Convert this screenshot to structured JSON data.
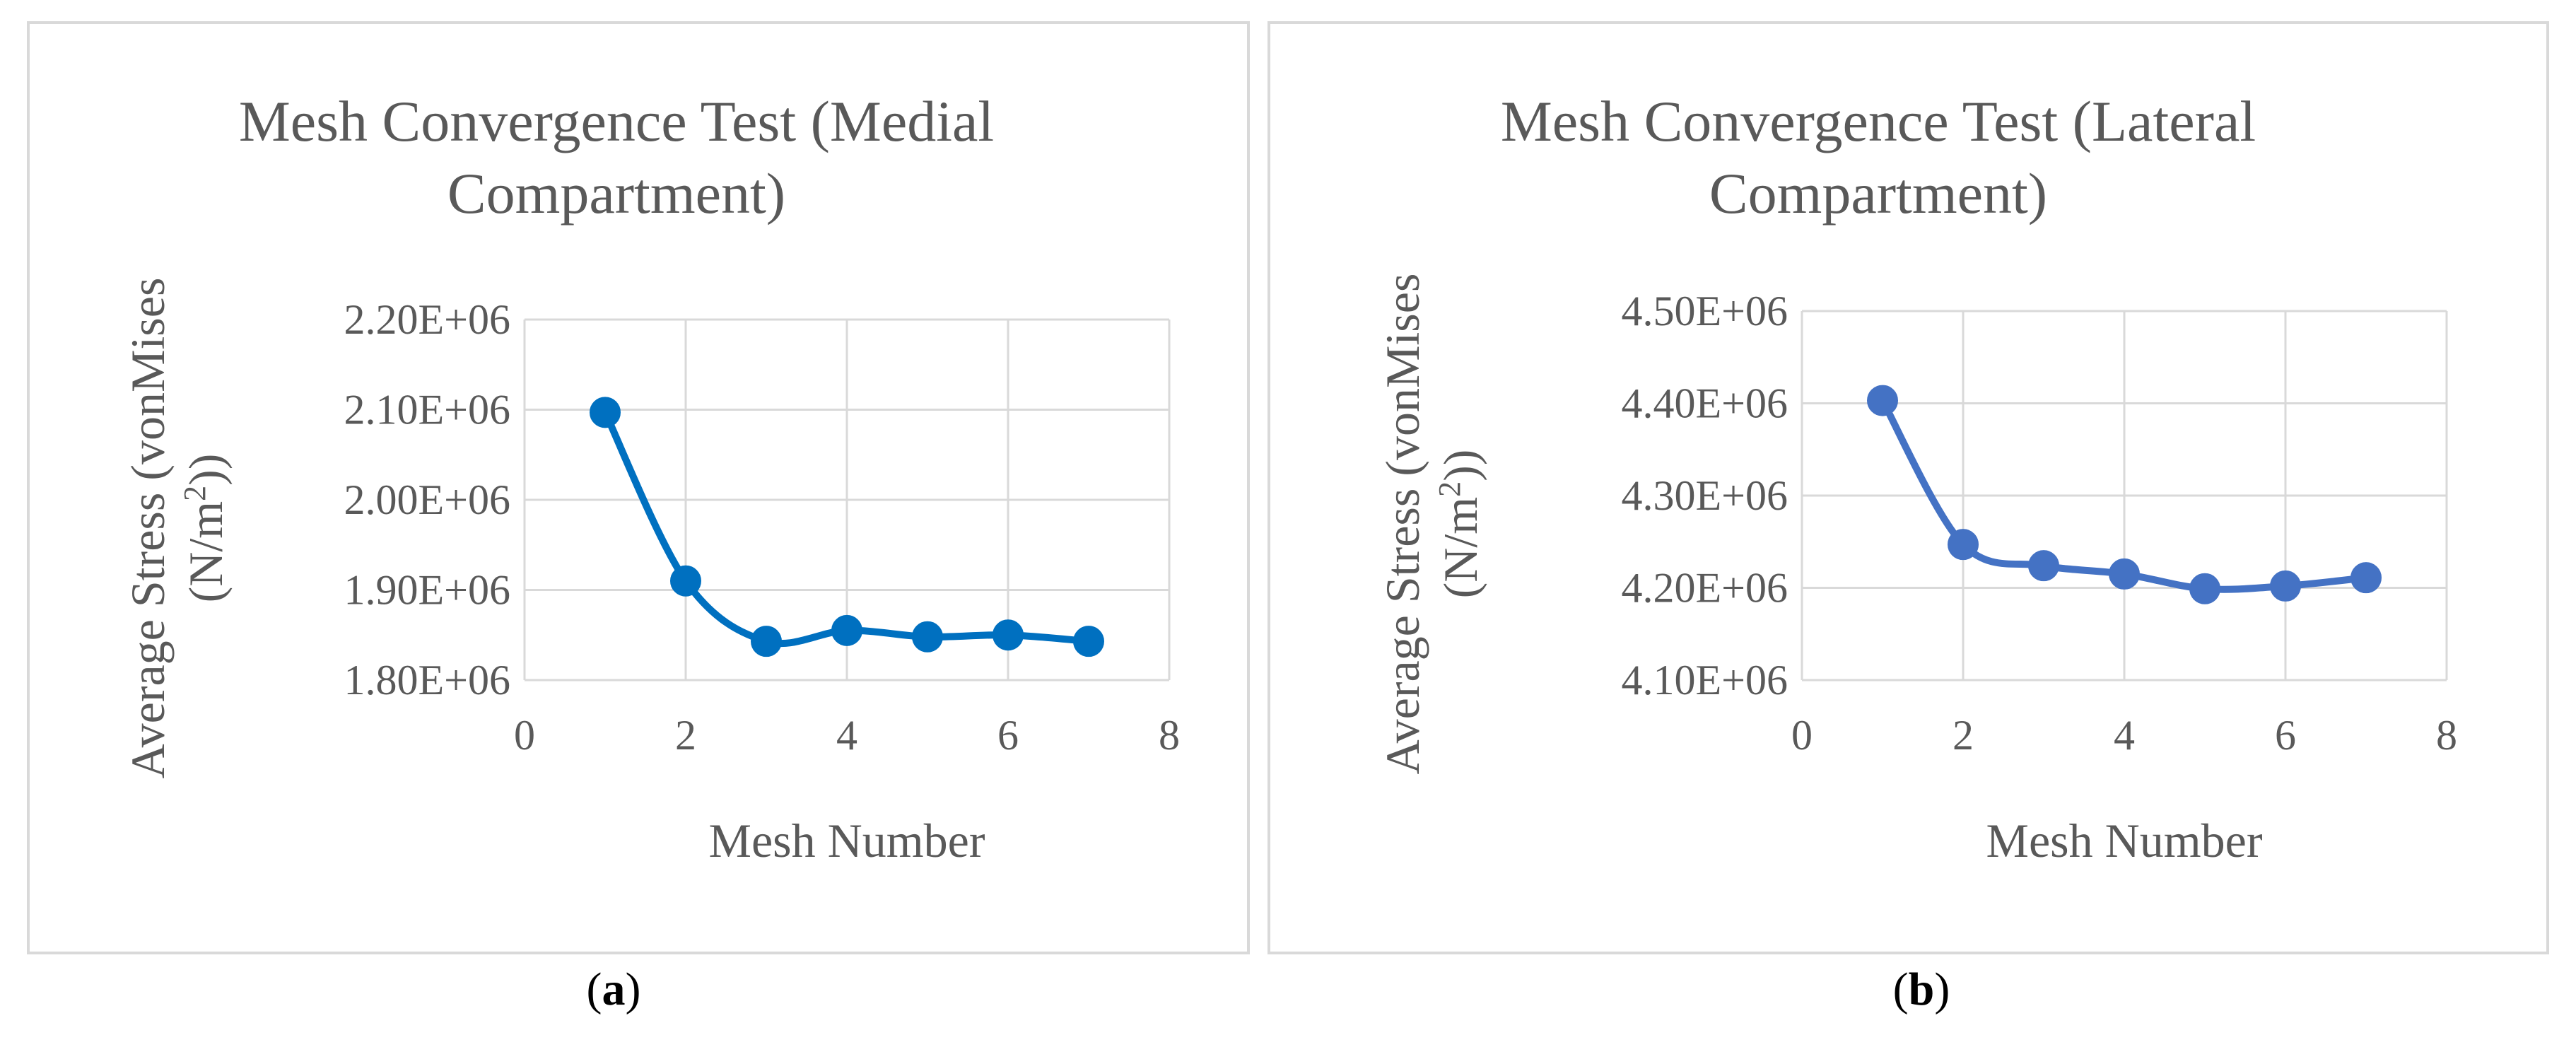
{
  "chart_data": [
    {
      "type": "line",
      "title": "Mesh Convergence Test (Medial Compartment)",
      "title_lines": [
        "Mesh Convergence Test (Medial",
        "Compartment)"
      ],
      "xlabel": "Mesh Number",
      "ylabel_line1": "Average Stress (vonMises",
      "ylabel_line2_pre": "(N/m",
      "ylabel_line2_sup": "2",
      "ylabel_line2_post": "))",
      "xlim": [
        0,
        8
      ],
      "ylim": [
        1800000,
        2200000
      ],
      "x_ticks": [
        0,
        2,
        4,
        6,
        8
      ],
      "y_ticks": [
        1800000,
        1900000,
        2000000,
        2100000,
        2200000
      ],
      "y_tick_labels": [
        "1.80E+06",
        "1.90E+06",
        "2.00E+06",
        "2.10E+06",
        "2.20E+06"
      ],
      "grid": true,
      "color": "#0070c0",
      "series": [
        {
          "x": [
            1,
            2,
            3,
            4,
            5,
            6,
            7
          ],
          "y": [
            2097000,
            1910000,
            1843000,
            1855000,
            1848000,
            1850000,
            1843000
          ]
        }
      ],
      "caption_letter": "a"
    },
    {
      "type": "line",
      "title": "Mesh Convergence Test (Lateral Compartment)",
      "title_lines": [
        "Mesh Convergence Test (Lateral",
        "Compartment)"
      ],
      "xlabel": "Mesh Number",
      "ylabel_line1": "Average Stress (vonMises",
      "ylabel_line2_pre": "(N/m",
      "ylabel_line2_sup": "2",
      "ylabel_line2_post": "))",
      "xlim": [
        0,
        8
      ],
      "ylim": [
        4100000,
        4500000
      ],
      "x_ticks": [
        0,
        2,
        4,
        6,
        8
      ],
      "y_ticks": [
        4100000,
        4200000,
        4300000,
        4400000,
        4500000
      ],
      "y_tick_labels": [
        "4.10E+06",
        "4.20E+06",
        "4.30E+06",
        "4.40E+06",
        "4.50E+06"
      ],
      "grid": true,
      "color": "#4472c4",
      "series": [
        {
          "x": [
            1,
            2,
            3,
            4,
            5,
            6,
            7
          ],
          "y": [
            4403000,
            4247000,
            4224000,
            4215000,
            4199000,
            4202000,
            4211000
          ]
        }
      ],
      "caption_letter": "b"
    }
  ]
}
